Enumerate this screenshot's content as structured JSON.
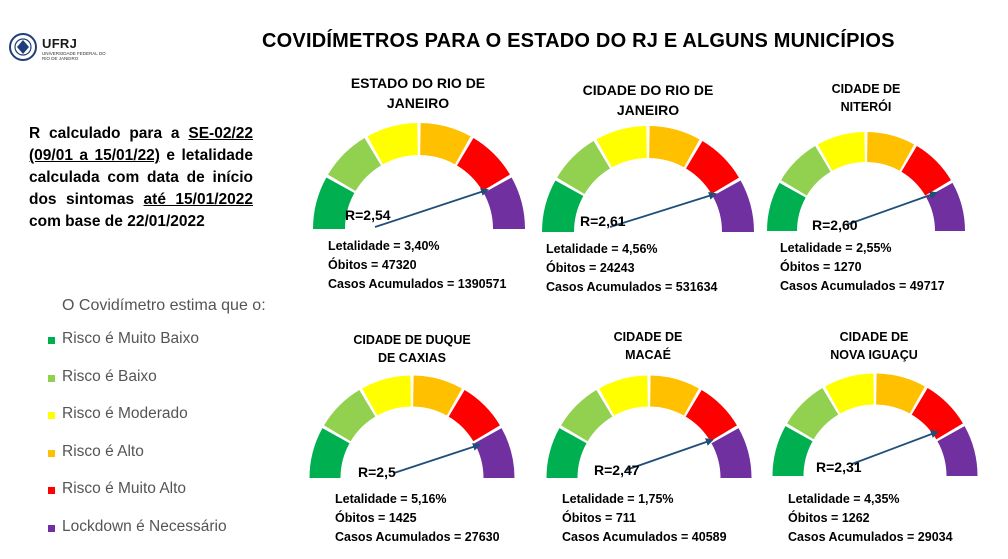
{
  "header": {
    "logo_text": "UFRJ",
    "logo_subtext": "UNIVERSIDADE FEDERAL DO RIO DE JANEIRO",
    "title": "COVIDÍMETROS PARA O ESTADO DO RJ E ALGUNS MUNICÍPIOS"
  },
  "note": {
    "part1": "R calculado para a ",
    "se": "SE-02/22",
    "space": " ",
    "period": "(09/01 a 15/01/22)",
    "part2": " e letalidade calculada com data de início dos sintomas ",
    "ate": "até 15/01/2022",
    "part3": " com base de 22/01/2022"
  },
  "legend": {
    "intro": "O Covidímetro estima que o:",
    "items": [
      {
        "label": "Risco é Muito Baixo",
        "color": "#00b050"
      },
      {
        "label": "Risco é Baixo",
        "color": "#92d050"
      },
      {
        "label": "Risco é Moderado",
        "color": "#ffff00"
      },
      {
        "label": "Risco é Alto",
        "color": "#ffc000"
      },
      {
        "label": "Risco é Muito Alto",
        "color": "#ff0000"
      },
      {
        "label": "Lockdown é Necessário",
        "color": "#7030a0"
      }
    ]
  },
  "labels": {
    "letalidade": "Letalidade = ",
    "obitos": "Óbitos = ",
    "casos": "Casos Acumulados = "
  },
  "chart_data": [
    {
      "type": "gauge",
      "title_line1": "ESTADO DO RIO DE",
      "title_line2": "JANEIRO",
      "r_label": "R=2,54",
      "r": 2.54,
      "letalidade": "3,40%",
      "obitos": "47320",
      "casos": "1390571"
    },
    {
      "type": "gauge",
      "title_line1": "CIDADE DO RIO DE",
      "title_line2": "JANEIRO",
      "r_label": "R=2,61",
      "r": 2.61,
      "letalidade": "4,56%",
      "obitos": "24243",
      "casos": "531634"
    },
    {
      "type": "gauge",
      "title_line1": "CIDADE DE",
      "title_line2": "NITERÓI",
      "r_label": "R=2,60",
      "r": 2.6,
      "letalidade": "2,55%",
      "obitos": "1270",
      "casos": "49717"
    },
    {
      "type": "gauge",
      "title_line1": "CIDADE DE DUQUE",
      "title_line2": "DE CAXIAS",
      "r_label": "R=2,5",
      "r": 2.5,
      "letalidade": "5,16%",
      "obitos": "1425",
      "casos": "27630"
    },
    {
      "type": "gauge",
      "title_line1": "CIDADE DE",
      "title_line2": "MACAÉ",
      "r_label": "R=2,47",
      "r": 2.47,
      "letalidade": "1,75%",
      "obitos": "711",
      "casos": "40589"
    },
    {
      "type": "gauge",
      "title_line1": "CIDADE DE",
      "title_line2": "NOVA IGUAÇU",
      "r_label": "R=2,31",
      "r": 2.31,
      "letalidade": "4,35%",
      "obitos": "1262",
      "casos": "29034"
    }
  ]
}
